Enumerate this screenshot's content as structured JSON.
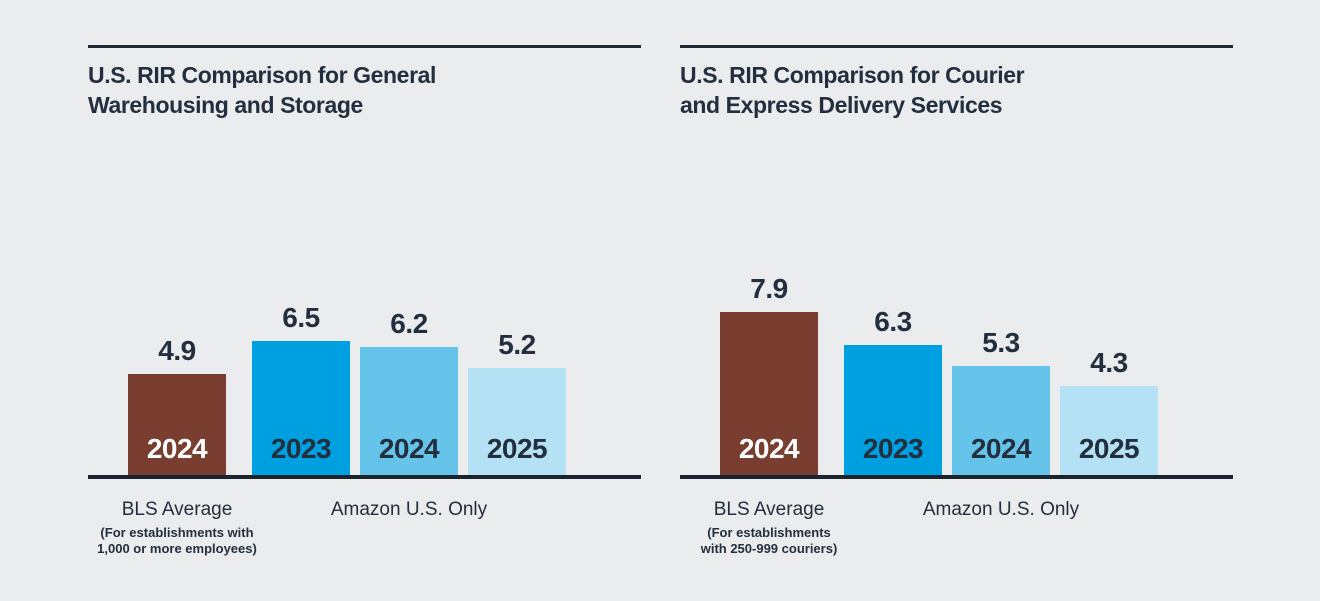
{
  "page": {
    "background_color": "#EAECEE",
    "ink_color": "#232F3E",
    "rule_color": "#1B232E"
  },
  "chart_data": [
    {
      "type": "bar",
      "title": "U.S. RIR Comparison for General\nWarehousing and Storage",
      "xlabel": "",
      "ylabel": "",
      "categories": [
        "2024",
        "2023",
        "2024",
        "2025"
      ],
      "values": [
        4.9,
        6.5,
        6.2,
        5.2
      ],
      "value_labels": [
        "4.9",
        "6.5",
        "6.2",
        "5.2"
      ],
      "bar_colors": [
        "#7A3E30",
        "#009FE0",
        "#66C4EA",
        "#B5E1F4"
      ],
      "year_label_colors": [
        "#FFFFFF",
        "#232F3E",
        "#232F3E",
        "#232F3E"
      ],
      "grid": false,
      "legend": "none",
      "groups": [
        {
          "label": "BLS Average",
          "note": "(For establishments with\n1,000 or more employees)",
          "bar_indices": [
            0
          ]
        },
        {
          "label": "Amazon U.S. Only",
          "note": "",
          "bar_indices": [
            1,
            2,
            3
          ]
        }
      ]
    },
    {
      "type": "bar",
      "title": "U.S. RIR Comparison for Courier\nand Express Delivery Services",
      "xlabel": "",
      "ylabel": "",
      "categories": [
        "2024",
        "2023",
        "2024",
        "2025"
      ],
      "values": [
        7.9,
        6.3,
        5.3,
        4.3
      ],
      "value_labels": [
        "7.9",
        "6.3",
        "5.3",
        "4.3"
      ],
      "bar_colors": [
        "#7A3E30",
        "#009FE0",
        "#66C4EA",
        "#B5E1F4"
      ],
      "year_label_colors": [
        "#FFFFFF",
        "#232F3E",
        "#232F3E",
        "#232F3E"
      ],
      "grid": false,
      "legend": "none",
      "groups": [
        {
          "label": "BLS Average",
          "note": "(For establishments\nwith 250-999 couriers)",
          "bar_indices": [
            0
          ]
        },
        {
          "label": "Amazon U.S. Only",
          "note": "",
          "bar_indices": [
            1,
            2,
            3
          ]
        }
      ]
    }
  ]
}
